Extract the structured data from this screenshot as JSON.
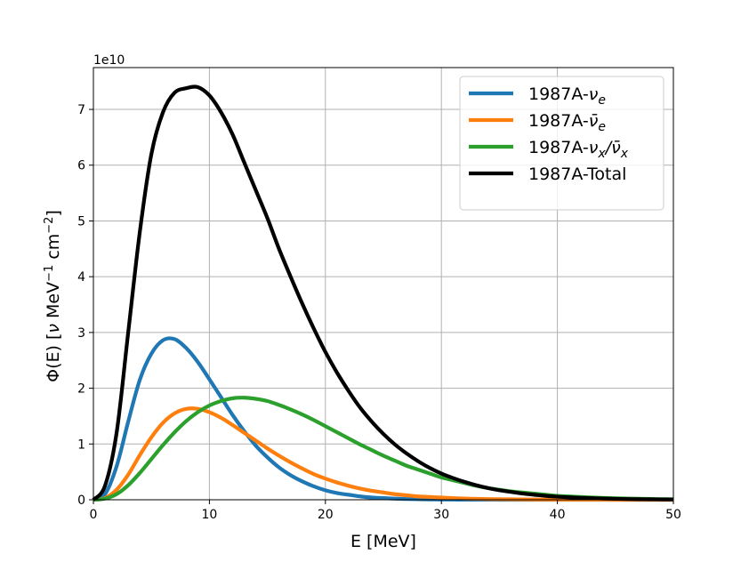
{
  "chart_data": {
    "type": "line",
    "title": "",
    "xlabel": "E [MeV]",
    "ylabel_parts": [
      "Φ(E) [",
      "ν",
      " MeV",
      "−1",
      " cm",
      "−2",
      "]"
    ],
    "offset_label": "1e10",
    "xlim": [
      0,
      50
    ],
    "ylim": [
      0,
      7.75
    ],
    "xticks": [
      0,
      10,
      20,
      30,
      40,
      50
    ],
    "yticks": [
      0,
      1,
      2,
      3,
      4,
      5,
      6,
      7
    ],
    "grid": true,
    "legend_position": "top-right",
    "x": [
      0,
      1,
      2,
      3,
      4,
      5,
      6,
      7,
      8,
      9,
      10,
      11,
      12,
      13,
      14,
      15,
      16,
      17,
      18,
      19,
      20,
      21,
      22,
      23,
      24,
      25,
      26,
      27,
      28,
      29,
      30,
      31,
      32,
      33,
      34,
      35,
      36,
      37,
      38,
      39,
      40,
      41,
      42,
      43,
      44,
      45,
      46,
      47,
      48,
      49,
      50
    ],
    "series": [
      {
        "name": "1987A-νe",
        "label_parts": [
          "1987A-",
          "ν",
          "e",
          ""
        ],
        "color": "#1f77b4",
        "values": [
          0,
          0.1,
          0.6,
          1.4,
          2.15,
          2.62,
          2.86,
          2.88,
          2.72,
          2.47,
          2.16,
          1.84,
          1.52,
          1.23,
          0.97,
          0.76,
          0.58,
          0.44,
          0.33,
          0.24,
          0.17,
          0.12,
          0.09,
          0.06,
          0.04,
          0.03,
          0.02,
          0.013,
          0.009,
          0.006,
          0.004,
          0.003,
          0.002,
          0.001,
          0.001,
          0.0005,
          0.0003,
          0.0002,
          0.0001,
          0,
          0,
          0,
          0,
          0,
          0,
          0,
          0,
          0,
          0,
          0,
          0
        ]
      },
      {
        "name": "1987A-ν̄e",
        "label_parts": [
          "1987A-",
          "ν̄",
          "e",
          ""
        ],
        "color": "#ff7f0e",
        "values": [
          0,
          0.03,
          0.18,
          0.45,
          0.8,
          1.12,
          1.38,
          1.55,
          1.63,
          1.63,
          1.57,
          1.47,
          1.34,
          1.2,
          1.06,
          0.92,
          0.79,
          0.67,
          0.56,
          0.46,
          0.38,
          0.31,
          0.25,
          0.2,
          0.16,
          0.13,
          0.1,
          0.08,
          0.06,
          0.05,
          0.04,
          0.03,
          0.022,
          0.017,
          0.013,
          0.01,
          0.008,
          0.006,
          0.004,
          0.003,
          0.002,
          0.0015,
          0.001,
          0.0008,
          0.0006,
          0.0004,
          0.0003,
          0.0002,
          0.0001,
          0.0001,
          0
        ]
      },
      {
        "name": "1987A-νx/ν̄x",
        "label_parts": [
          "1987A-",
          "ν",
          "x",
          "/ν̄x"
        ],
        "color": "#2ca02c",
        "values": [
          0,
          0.02,
          0.1,
          0.26,
          0.48,
          0.73,
          0.98,
          1.21,
          1.41,
          1.57,
          1.69,
          1.77,
          1.82,
          1.83,
          1.81,
          1.77,
          1.7,
          1.62,
          1.53,
          1.43,
          1.32,
          1.21,
          1.1,
          0.99,
          0.89,
          0.79,
          0.7,
          0.61,
          0.54,
          0.47,
          0.4,
          0.35,
          0.3,
          0.25,
          0.21,
          0.18,
          0.15,
          0.13,
          0.11,
          0.09,
          0.07,
          0.06,
          0.05,
          0.04,
          0.033,
          0.027,
          0.022,
          0.018,
          0.014,
          0.011,
          0.009
        ]
      },
      {
        "name": "1987A-Total",
        "label_parts": [
          "1987A-Total",
          "",
          "",
          ""
        ],
        "color": "#000000",
        "values": [
          0,
          0.25,
          1.2,
          3.0,
          4.8,
          6.2,
          6.95,
          7.3,
          7.38,
          7.4,
          7.25,
          6.95,
          6.55,
          6.05,
          5.55,
          5.05,
          4.5,
          4.0,
          3.52,
          3.07,
          2.65,
          2.28,
          1.95,
          1.65,
          1.4,
          1.18,
          0.99,
          0.83,
          0.69,
          0.57,
          0.47,
          0.39,
          0.32,
          0.26,
          0.21,
          0.17,
          0.14,
          0.11,
          0.09,
          0.07,
          0.055,
          0.044,
          0.035,
          0.028,
          0.022,
          0.017,
          0.013,
          0.01,
          0.008,
          0.006,
          0.005
        ]
      }
    ]
  }
}
